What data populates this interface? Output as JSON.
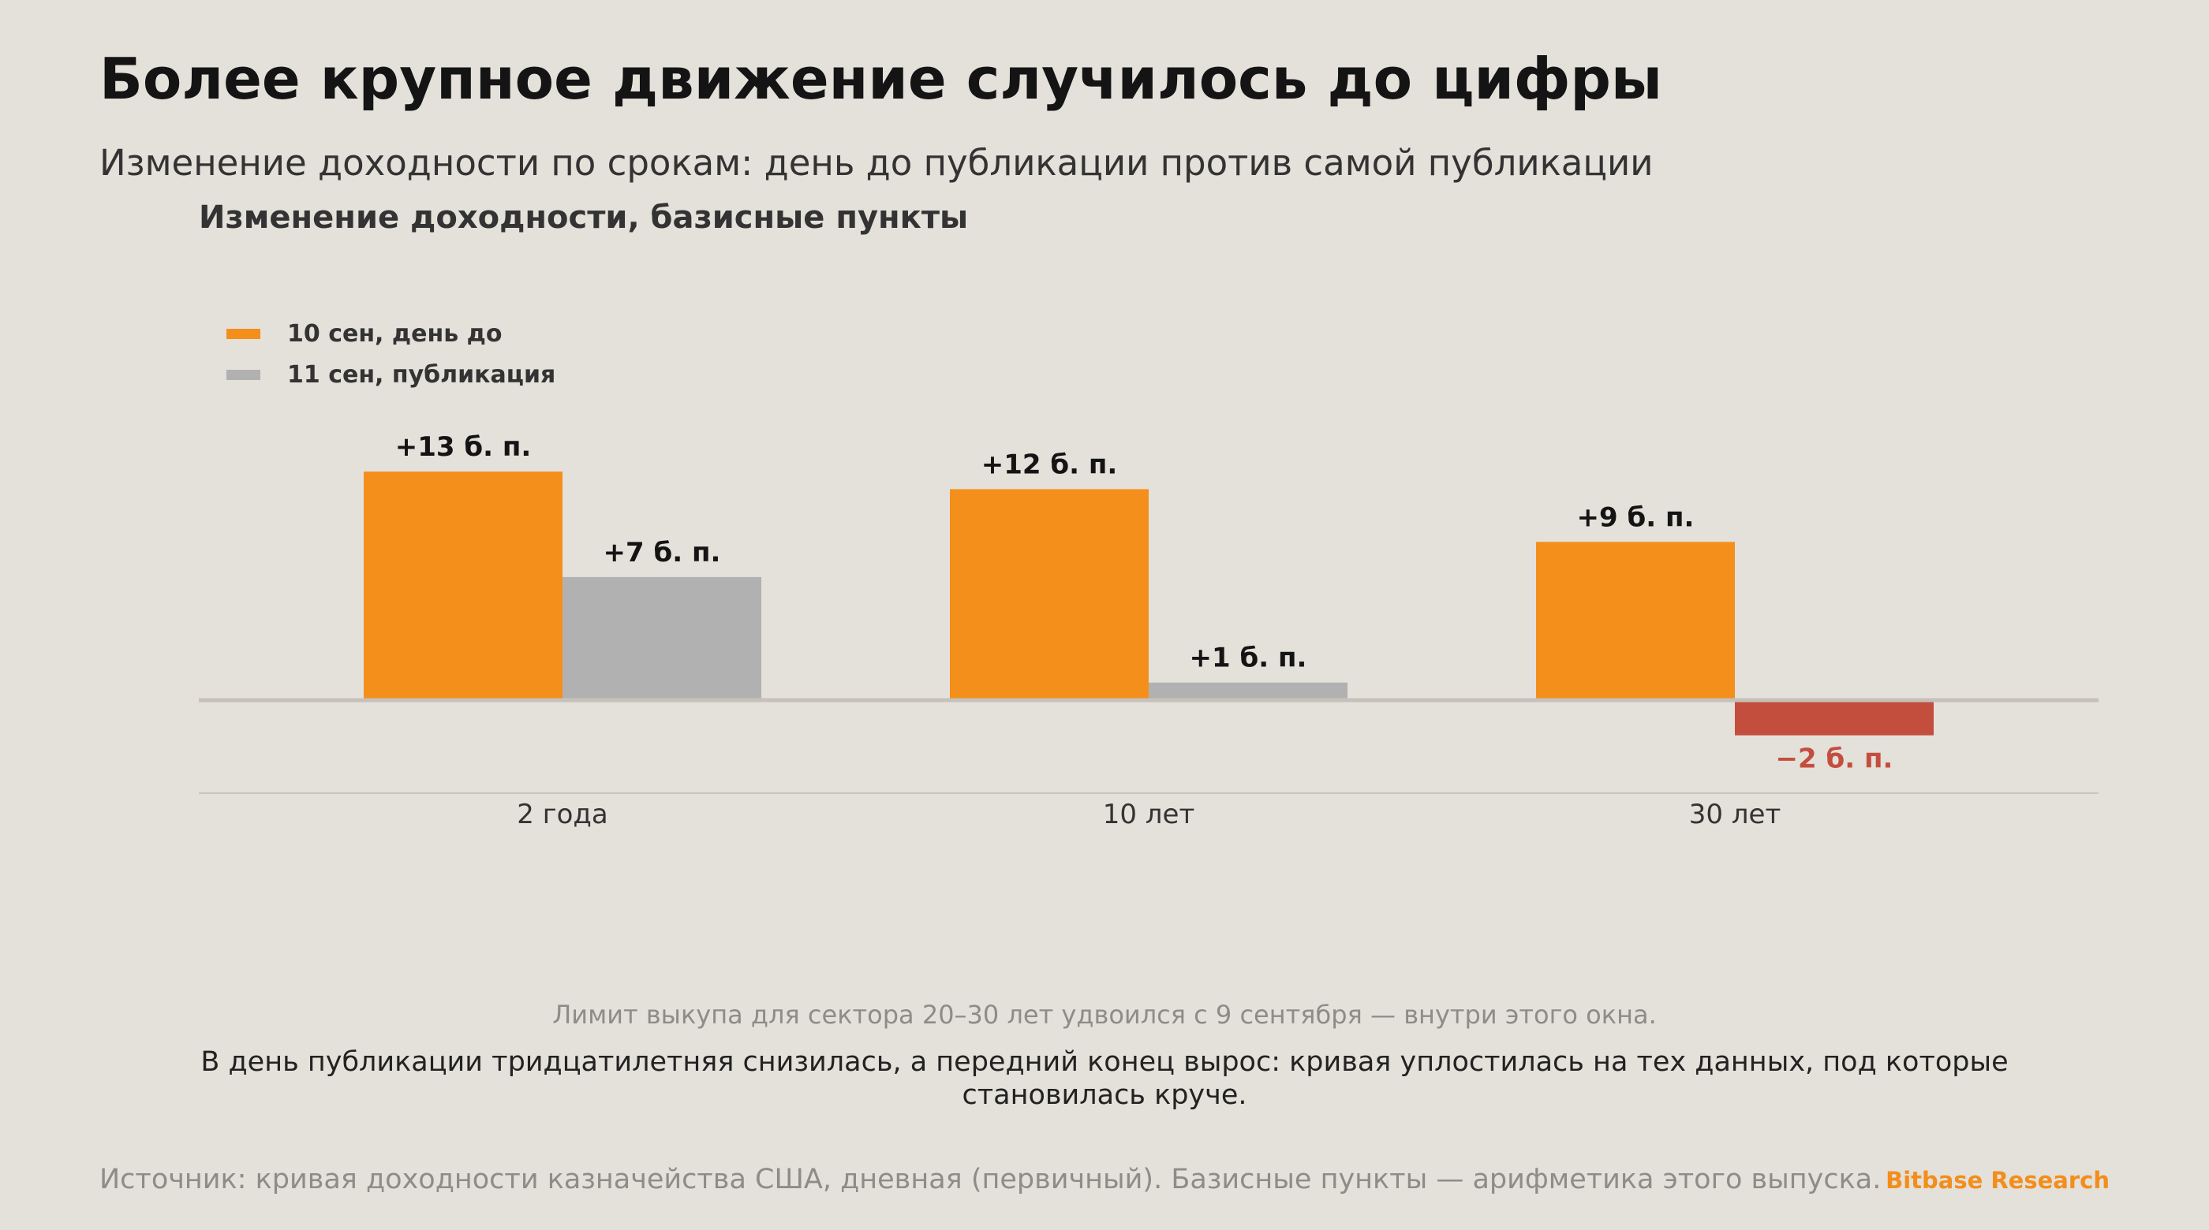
{
  "header": {
    "title": "Более крупное движение случилось до цифры",
    "subtitle": "Изменение доходности по срокам: день до публикации против самой публикации"
  },
  "chart_data": {
    "type": "bar",
    "title": "Изменение доходности, базисные пункты",
    "xlabel": "",
    "ylabel": "",
    "categories": [
      "2 года",
      "10 лет",
      "30 лет"
    ],
    "series": [
      {
        "name": "10 сен, день до",
        "color": "#f58f1b",
        "values": [
          13,
          12,
          9
        ],
        "labels": [
          "+13 б. п.",
          "+12 б. п.",
          "+9 б. п."
        ]
      },
      {
        "name": "11 сен, публикация",
        "color": "#b1b1b1",
        "negative_color": "#c44e3e",
        "values": [
          7,
          1,
          -2
        ],
        "labels": [
          "+7 б. п.",
          "+1 б. п.",
          "−2 б. п."
        ]
      }
    ],
    "ylim": [
      -5.3,
      15.6
    ],
    "grid": false,
    "legend": "top-left"
  },
  "notes": {
    "limit": "Лимит выкупа для сектора 20–30 лет удвоился с 9 сентября — внутри этого окна.",
    "summary": "В день публикации тридцатилетняя снизилась, а передний конец вырос: кривая уплостилась на тех данных, под которые становилась круче."
  },
  "footer": {
    "source": "Источник: кривая доходности казначейства США, дневная (первичный). Базисные пункты — арифметика этого выпуска.",
    "brand": "Bitbase Research"
  },
  "colors": {
    "background": "#e4e0da",
    "brand": "#f28e1c",
    "negative_label": "#c44e3e"
  }
}
